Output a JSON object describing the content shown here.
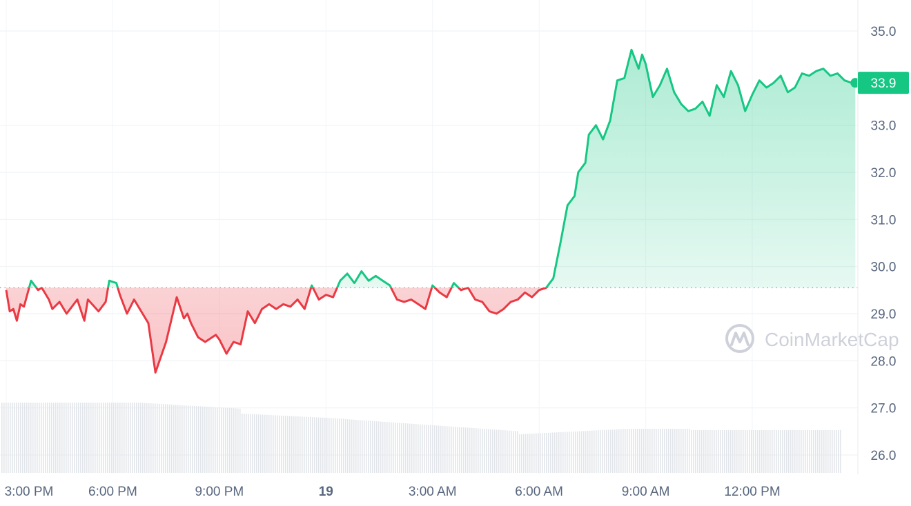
{
  "chart_data": {
    "type": "line",
    "title": "",
    "xlabel": "",
    "ylabel": "",
    "ylim": [
      25.6,
      35.6
    ],
    "y_ticks": [
      "35.0",
      "33.9",
      "33.0",
      "32.0",
      "31.0",
      "30.0",
      "29.0",
      "28.0",
      "27.0",
      "26.0"
    ],
    "y_tick_values": [
      35.0,
      33.9,
      33.0,
      32.0,
      31.0,
      30.0,
      29.0,
      28.0,
      27.0,
      26.0
    ],
    "x_ticks": [
      {
        "label": "3:00 PM",
        "hour": 15,
        "bold": false
      },
      {
        "label": "6:00 PM",
        "hour": 18,
        "bold": false
      },
      {
        "label": "9:00 PM",
        "hour": 21,
        "bold": false
      },
      {
        "label": "19",
        "hour": 24,
        "bold": true
      },
      {
        "label": "3:00 AM",
        "hour": 27,
        "bold": false
      },
      {
        "label": "6:00 AM",
        "hour": 30,
        "bold": false
      },
      {
        "label": "9:00 AM",
        "hour": 33,
        "bold": false
      },
      {
        "label": "12:00 PM",
        "hour": 36,
        "bold": false
      }
    ],
    "xlim_hours": [
      15,
      38.9
    ],
    "reference_price": 29.55,
    "current_price": 33.9,
    "current_price_label": "33.9",
    "up_color": "#16c784",
    "down_color": "#ea3943",
    "grid": true,
    "series": [
      {
        "x_hours": [
          15.0,
          15.1,
          15.2,
          15.3,
          15.4,
          15.5,
          15.7,
          15.9,
          16.0,
          16.2,
          16.3,
          16.5,
          16.7,
          16.8,
          17.0,
          17.2,
          17.3,
          17.6,
          17.8,
          17.9,
          18.1,
          18.2,
          18.4,
          18.6,
          18.8,
          19.0,
          19.2,
          19.5,
          19.8,
          20.0,
          20.1,
          20.2,
          20.4,
          20.6,
          20.9,
          21.0,
          21.2,
          21.4,
          21.6,
          21.8,
          22.0,
          22.2,
          22.4,
          22.6,
          22.8,
          23.0,
          23.2,
          23.4,
          23.6,
          23.8,
          24.0,
          24.2,
          24.4,
          24.6,
          24.8,
          25.0,
          25.2,
          25.4,
          25.6,
          25.8,
          26.0,
          26.2,
          26.4,
          26.6,
          26.8,
          27.0,
          27.2,
          27.4,
          27.6,
          27.8,
          28.0,
          28.2,
          28.4,
          28.6,
          28.8,
          29.0,
          29.2,
          29.4,
          29.6,
          29.8,
          30.0,
          30.2,
          30.4,
          30.6,
          30.8,
          30.9,
          31.0,
          31.1,
          31.2,
          31.3,
          31.4,
          31.5,
          31.6,
          31.8,
          32.0,
          32.2,
          32.4,
          32.6,
          32.8,
          32.9,
          33.0,
          33.2,
          33.4,
          33.6,
          33.8,
          34.0,
          34.2,
          34.4,
          34.6,
          34.8,
          35.0,
          35.2,
          35.4,
          35.6,
          35.8,
          36.0,
          36.2,
          36.4,
          36.6,
          36.8,
          37.0,
          37.2,
          37.4,
          37.6,
          37.8,
          38.0,
          38.2,
          38.4,
          38.6,
          38.8,
          38.9
        ],
        "values": [
          29.5,
          29.05,
          29.1,
          28.85,
          29.2,
          29.15,
          29.7,
          29.5,
          29.55,
          29.3,
          29.1,
          29.25,
          29.0,
          29.1,
          29.3,
          28.85,
          29.3,
          29.05,
          29.25,
          29.7,
          29.65,
          29.4,
          29.0,
          29.3,
          29.05,
          28.8,
          27.75,
          28.4,
          29.35,
          28.9,
          29.0,
          28.8,
          28.5,
          28.4,
          28.55,
          28.45,
          28.15,
          28.4,
          28.35,
          29.05,
          28.8,
          29.1,
          29.2,
          29.1,
          29.2,
          29.15,
          29.3,
          29.1,
          29.6,
          29.3,
          29.4,
          29.35,
          29.7,
          29.85,
          29.65,
          29.9,
          29.7,
          29.8,
          29.7,
          29.6,
          29.3,
          29.25,
          29.3,
          29.2,
          29.1,
          29.6,
          29.45,
          29.35,
          29.65,
          29.5,
          29.55,
          29.3,
          29.25,
          29.05,
          29.0,
          29.1,
          29.25,
          29.3,
          29.45,
          29.35,
          29.5,
          29.55,
          29.75,
          30.5,
          31.3,
          31.4,
          31.5,
          32.0,
          32.1,
          32.2,
          32.8,
          32.9,
          33.0,
          32.7,
          33.1,
          33.95,
          34.0,
          34.6,
          34.2,
          34.5,
          34.3,
          33.6,
          33.85,
          34.2,
          33.7,
          33.45,
          33.3,
          33.35,
          33.5,
          33.2,
          33.85,
          33.6,
          34.15,
          33.85,
          33.3,
          33.65,
          33.95,
          33.8,
          33.9,
          34.05,
          33.7,
          33.8,
          34.1,
          34.05,
          34.15,
          34.2,
          34.05,
          34.1,
          33.95,
          33.9,
          33.9
        ]
      }
    ]
  },
  "watermark": {
    "text": "CoinMarketCap",
    "icon": "coinmarketcap-logo-icon"
  }
}
